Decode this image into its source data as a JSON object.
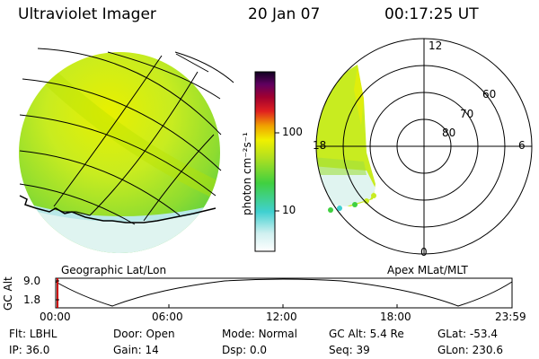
{
  "header": {
    "instrument": "Ultraviolet Imager",
    "date": "20 Jan 07",
    "time": "00:17:25 UT"
  },
  "colorbar": {
    "unit_label": "photon cm⁻²s⁻¹",
    "ticks": [
      "100",
      "10"
    ]
  },
  "panels": {
    "left_label": "Geographic Lat/Lon",
    "right_label": "Apex MLat/MLT"
  },
  "polar_plot": {
    "mlt_labels": {
      "top": "12",
      "left": "18",
      "right": "6",
      "bottom": "0"
    },
    "lat_labels": [
      "60",
      "70",
      "80"
    ]
  },
  "altitude_plot": {
    "ylabel": "GC Alt",
    "yticks": [
      "9.0",
      "1.8"
    ],
    "xticks": [
      "00:00",
      "06:00",
      "12:00",
      "18:00",
      "23:59"
    ],
    "marker_color": "#cc0000"
  },
  "status": {
    "row1": [
      {
        "label": "Flt:",
        "value": "LBHL"
      },
      {
        "label": "Door:",
        "value": "Open"
      },
      {
        "label": "Mode:",
        "value": "Normal"
      },
      {
        "label": "GC Alt:",
        "value": "5.4 Re"
      },
      {
        "label": "GLat:",
        "value": "-53.4"
      }
    ],
    "row2": [
      {
        "label": "IP:",
        "value": "36.0"
      },
      {
        "label": "Gain:",
        "value": "14"
      },
      {
        "label": "Dsp:",
        "value": "0.0"
      },
      {
        "label": "Seq:",
        "value": "39"
      },
      {
        "label": "GLon:",
        "value": "230.6"
      }
    ]
  }
}
